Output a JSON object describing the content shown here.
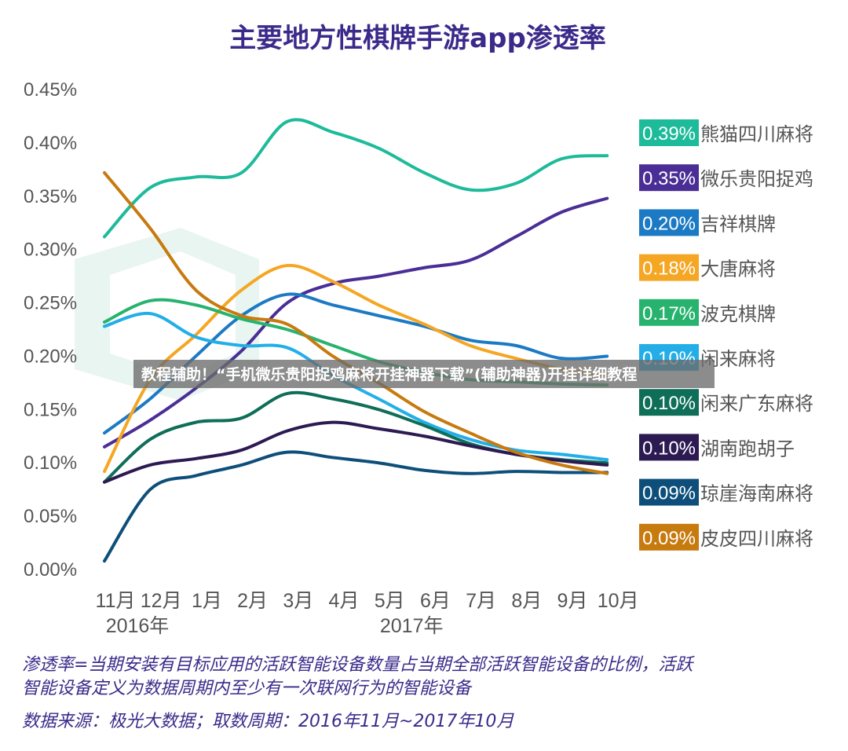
{
  "banner": {
    "text": "教程辅助！“手机微乐贵阳捉鸡麻将开挂神器下载”(辅助神器)开挂详细教程"
  },
  "chart_data": {
    "type": "line",
    "title": "主要地方性棋牌手游app渗透率",
    "categories": [
      "11月",
      "12月",
      "1月",
      "2月",
      "3月",
      "4月",
      "5月",
      "6月",
      "7月",
      "8月",
      "9月",
      "10月"
    ],
    "year_labels": [
      {
        "label": "2016年",
        "category_index": 0
      },
      {
        "label": "2017年",
        "category_index": 6
      }
    ],
    "y_ticks": [
      "0.00%",
      "0.05%",
      "0.10%",
      "0.15%",
      "0.20%",
      "0.25%",
      "0.30%",
      "0.35%",
      "0.40%",
      "0.45%"
    ],
    "ylim": [
      0,
      0.45
    ],
    "y_unit": "%",
    "grid": false,
    "legend_position": "right",
    "series": [
      {
        "name": "熊猫四川麻将",
        "label": "0.39%",
        "color": "#1dbb9a",
        "values": [
          0.312,
          0.358,
          0.368,
          0.372,
          0.42,
          0.41,
          0.395,
          0.372,
          0.356,
          0.362,
          0.385,
          0.388
        ]
      },
      {
        "name": "微乐贵阳捉鸡",
        "label": "0.35%",
        "color": "#4a2e96",
        "values": [
          0.115,
          0.14,
          0.17,
          0.205,
          0.25,
          0.268,
          0.275,
          0.283,
          0.29,
          0.312,
          0.335,
          0.348
        ]
      },
      {
        "name": "吉祥棋牌",
        "label": "0.20%",
        "color": "#1c7ac4",
        "values": [
          0.128,
          0.16,
          0.2,
          0.238,
          0.258,
          0.248,
          0.238,
          0.228,
          0.215,
          0.21,
          0.198,
          0.2
        ]
      },
      {
        "name": "大唐麻将",
        "label": "0.18%",
        "color": "#f5a623",
        "values": [
          0.092,
          0.178,
          0.22,
          0.262,
          0.285,
          0.27,
          0.248,
          0.23,
          0.21,
          0.198,
          0.188,
          0.182
        ]
      },
      {
        "name": "波克棋牌",
        "label": "0.17%",
        "color": "#27b36e",
        "values": [
          0.232,
          0.252,
          0.248,
          0.235,
          0.225,
          0.21,
          0.195,
          0.185,
          0.178,
          0.176,
          0.174,
          0.173
        ]
      },
      {
        "name": "闲来麻将",
        "label": "0.10%",
        "color": "#23aee8",
        "values": [
          0.228,
          0.24,
          0.218,
          0.21,
          0.208,
          0.182,
          0.16,
          0.138,
          0.122,
          0.112,
          0.108,
          0.103
        ]
      },
      {
        "name": "闲来广东麻将",
        "label": "0.10%",
        "color": "#0e6e58",
        "values": [
          0.082,
          0.122,
          0.138,
          0.142,
          0.165,
          0.16,
          0.15,
          0.135,
          0.118,
          0.108,
          0.103,
          0.1
        ]
      },
      {
        "name": "湖南跑胡子",
        "label": "0.10%",
        "color": "#2d1a52",
        "values": [
          0.082,
          0.098,
          0.104,
          0.112,
          0.13,
          0.138,
          0.132,
          0.125,
          0.116,
          0.108,
          0.102,
          0.098
        ]
      },
      {
        "name": "琼崖海南麻将",
        "label": "0.09%",
        "color": "#0d4f7a",
        "values": [
          0.008,
          0.075,
          0.088,
          0.098,
          0.11,
          0.105,
          0.1,
          0.093,
          0.09,
          0.092,
          0.091,
          0.091
        ]
      },
      {
        "name": "皮皮四川麻将",
        "label": "0.09%",
        "color": "#c77a0e",
        "values": [
          0.372,
          0.32,
          0.262,
          0.238,
          0.23,
          0.2,
          0.175,
          0.148,
          0.128,
          0.11,
          0.098,
          0.09
        ]
      }
    ]
  },
  "footnote": {
    "line1": "渗透率=当期安装有目标应用的活跃智能设备数量占当期全部活跃智能设备的比例，活跃",
    "line2": "智能设备定义为数据周期内至少有一次联网行为的智能设备",
    "source": "数据来源：极光大数据；取数周期：2016年11月~2017年10月"
  }
}
